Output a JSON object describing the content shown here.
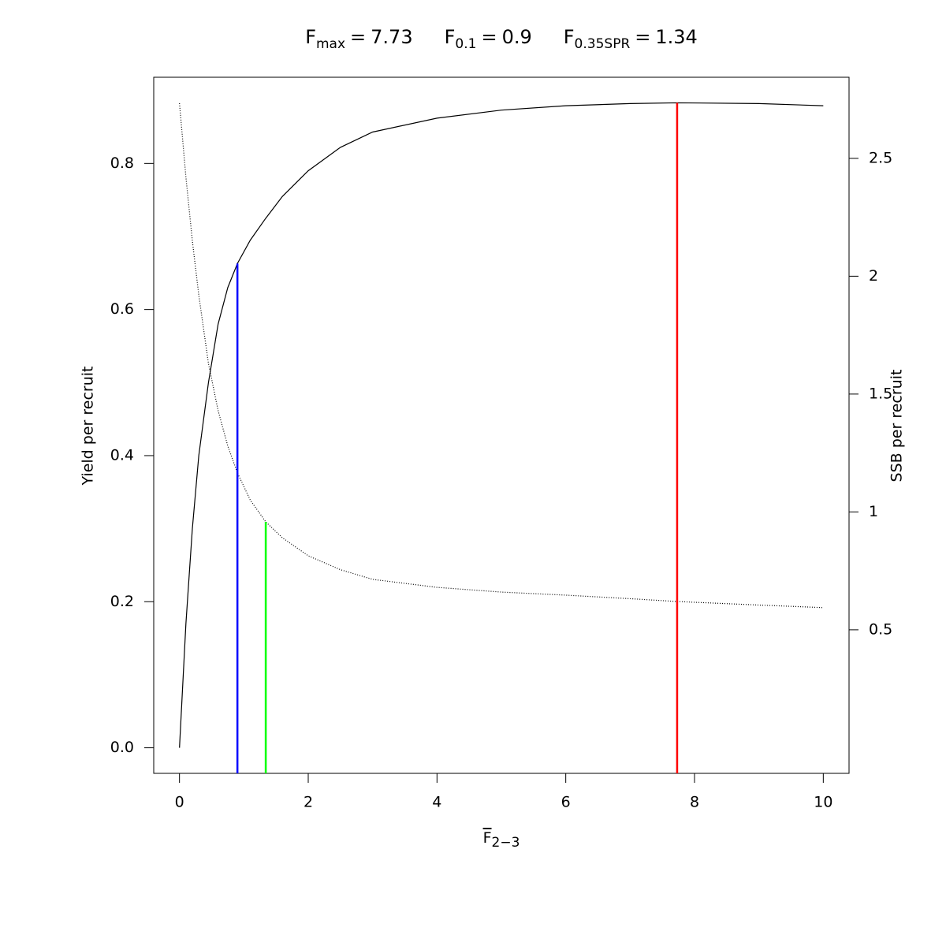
{
  "chart_data": {
    "type": "line",
    "title": [
      {
        "symbol": "F",
        "subscript": "max",
        "relation": "=",
        "value": 7.73
      },
      {
        "symbol": "F",
        "subscript": "0.1",
        "relation": "=",
        "value": 0.9
      },
      {
        "symbol": "F",
        "subscript": "0.35SPR",
        "relation": "=",
        "value": 1.34
      }
    ],
    "xlabel": {
      "symbol": "F",
      "subscript": "2−3"
    },
    "ylabel": "Yield per recruit",
    "y2label": "SSB per recruit",
    "x": [
      0,
      0.1,
      0.2,
      0.3,
      0.45,
      0.6,
      0.75,
      0.9,
      1.1,
      1.34,
      1.6,
      2,
      2.5,
      3,
      4,
      5,
      6,
      7,
      7.73,
      9,
      10
    ],
    "series": [
      {
        "color": "#000000",
        "style": "solid",
        "axis": "y",
        "values": [
          0,
          0.17,
          0.3,
          0.4,
          0.5,
          0.58,
          0.63,
          0.663,
          0.695,
          0.725,
          0.755,
          0.79,
          0.822,
          0.843,
          0.862,
          0.873,
          0.879,
          0.882,
          0.883,
          0.882,
          0.879
        ]
      },
      {
        "color": "#000000",
        "style": "dotted",
        "axis": "y2",
        "values": [
          2.734,
          2.42,
          2.15,
          1.92,
          1.63,
          1.43,
          1.28,
          1.166,
          1.05,
          0.958,
          0.89,
          0.814,
          0.755,
          0.714,
          0.68,
          0.66,
          0.647,
          0.632,
          0.62,
          0.605,
          0.594
        ]
      }
    ],
    "reference_lines": [
      {
        "x": 0.9,
        "top": 0.663,
        "axis": "y",
        "color": "#0000ff"
      },
      {
        "x": 1.34,
        "top": 0.958,
        "axis": "y2",
        "color": "#00ff00"
      },
      {
        "x": 7.73,
        "top": 0.883,
        "axis": "y",
        "color": "#ff0000"
      }
    ],
    "xlim": [
      -0.4,
      10.4
    ],
    "xticks": [
      0,
      2,
      4,
      6,
      8,
      10
    ],
    "ylim": [
      -0.035,
      0.918
    ],
    "yticks": [
      {
        "value": 0,
        "label": "0.0"
      },
      0.2,
      0.4,
      0.6,
      0.8
    ],
    "y2lim": [
      -0.109,
      2.844
    ],
    "y2ticks": [
      0.5,
      1,
      1.5,
      2,
      2.5
    ]
  }
}
